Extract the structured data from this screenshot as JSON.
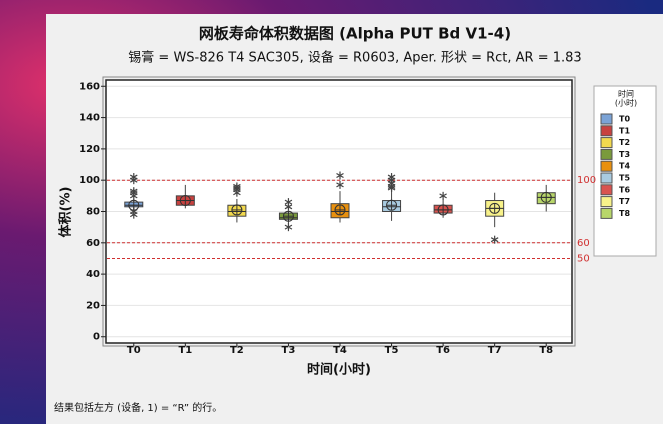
{
  "chart_data": {
    "type": "box",
    "title": "网板寿命体积数据图 (Alpha PUT Bd V1-4)",
    "subtitle": "锡膏 = WS-826 T4 SAC305, 设备 = R0603, Aper. 形状 = Rct, AR = 1.83",
    "x_label": "时间(小时)",
    "y_label": "体积(%)",
    "categories": [
      "T0",
      "T1",
      "T2",
      "T3",
      "T4",
      "T5",
      "T6",
      "T7",
      "T8"
    ],
    "boxes": [
      {
        "whisker_low": 80,
        "q1": 83,
        "median": 84,
        "q3": 86,
        "whisker_high": 88,
        "mean": 84,
        "outliers": [
          78,
          80,
          90,
          92,
          93,
          100,
          102
        ],
        "color": "#7ba3d6"
      },
      {
        "whisker_low": 82,
        "q1": 84,
        "median": 87,
        "q3": 90,
        "whisker_high": 97,
        "mean": 87,
        "outliers": [],
        "color": "#c8413f"
      },
      {
        "whisker_low": 73,
        "q1": 77,
        "median": 80,
        "q3": 84,
        "whisker_high": 88,
        "mean": 81,
        "outliers": [
          92,
          94,
          95,
          96
        ],
        "color": "#f2d94e"
      },
      {
        "whisker_low": 72,
        "q1": 75,
        "median": 76,
        "q3": 79,
        "whisker_high": 80,
        "mean": 77,
        "outliers": [
          70,
          83,
          86
        ],
        "color": "#7a9a3c"
      },
      {
        "whisker_low": 73,
        "q1": 76,
        "median": 80,
        "q3": 85,
        "whisker_high": 93,
        "mean": 81,
        "outliers": [
          97,
          103
        ],
        "color": "#e8900e"
      },
      {
        "whisker_low": 74,
        "q1": 80,
        "median": 83,
        "q3": 87,
        "whisker_high": 93,
        "mean": 84,
        "outliers": [
          95,
          96,
          98,
          100,
          102
        ],
        "color": "#a9cbe0"
      },
      {
        "whisker_low": 76,
        "q1": 79,
        "median": 81,
        "q3": 84,
        "whisker_high": 88,
        "mean": 81,
        "outliers": [
          90
        ],
        "color": "#d9534f"
      },
      {
        "whisker_low": 70,
        "q1": 77,
        "median": 82,
        "q3": 87,
        "whisker_high": 92,
        "mean": 82,
        "outliers": [
          62
        ],
        "color": "#f8f28a"
      },
      {
        "whisker_low": 80,
        "q1": 85,
        "median": 89,
        "q3": 92,
        "whisker_high": 97,
        "mean": 89,
        "outliers": [],
        "color": "#b8d66a"
      }
    ],
    "reference_lines": [
      100,
      60,
      50
    ],
    "reference_color": "#d03030",
    "ylim": [
      -4,
      164
    ],
    "yticks": [
      0,
      20,
      40,
      60,
      80,
      100,
      120,
      140,
      160
    ],
    "grid": true,
    "legend_title": [
      "时间",
      "(小时)"
    ],
    "legend_position": "right",
    "footnote": "结果包括左方 (设备, 1) = “R” 的行。"
  }
}
